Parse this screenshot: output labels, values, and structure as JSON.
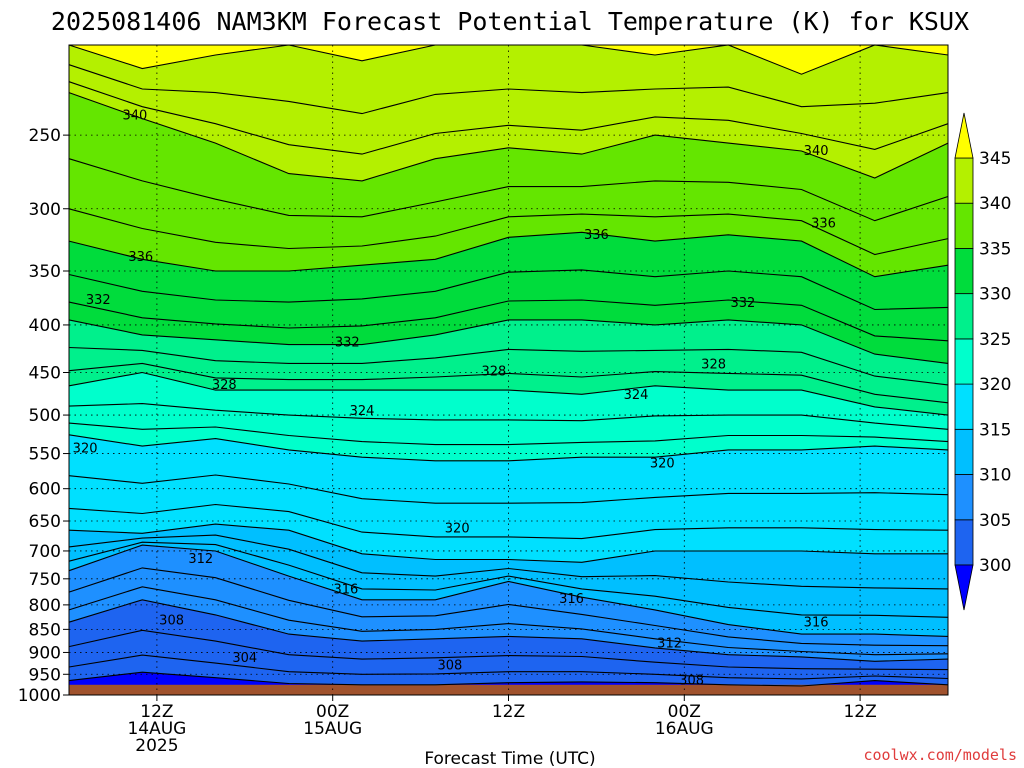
{
  "title": "2025081406 NAM3KM Forecast Potential Temperature (K) for KSUX",
  "credit": "coolwx.com/models",
  "colors": {
    "ground": "#a0522d",
    "bands": [
      "#0000ff",
      "#1e64f0",
      "#1e90ff",
      "#00bfff",
      "#00e0ff",
      "#00ffcc",
      "#00f08c",
      "#00dc3c",
      "#64e600",
      "#b4f000",
      "#ffff00"
    ]
  },
  "chart_data": {
    "type": "contour",
    "title": "2025081406 NAM3KM Forecast Potential Temperature (K) for KSUX",
    "xlabel": "Forecast Time (UTC)",
    "ylabel": "",
    "x_ticks": [
      {
        "hour": 6,
        "lines": [
          "12Z",
          "14AUG",
          "2025"
        ]
      },
      {
        "hour": 18,
        "lines": [
          "00Z",
          "15AUG"
        ]
      },
      {
        "hour": 30,
        "lines": [
          "12Z"
        ]
      },
      {
        "hour": 42,
        "lines": [
          "00Z",
          "16AUG"
        ]
      },
      {
        "hour": 54,
        "lines": [
          "12Z"
        ]
      }
    ],
    "x_range_hours": [
      0,
      60
    ],
    "y_axis": {
      "unit": "hPa",
      "reversed": true,
      "scale": "log",
      "range": [
        1000,
        200
      ],
      "ticks": [
        250,
        300,
        350,
        400,
        450,
        500,
        550,
        600,
        650,
        700,
        750,
        800,
        850,
        900,
        950,
        1000
      ]
    },
    "colorbar": {
      "levels": [
        300,
        305,
        310,
        315,
        320,
        325,
        330,
        335,
        340,
        345
      ],
      "extend": "both"
    },
    "contour_interval_K": 2,
    "contour_labels": [
      {
        "text": "340",
        "hour": 4.5,
        "p": 238
      },
      {
        "text": "340",
        "hour": 51,
        "p": 260
      },
      {
        "text": "336",
        "hour": 4.9,
        "p": 338
      },
      {
        "text": "336",
        "hour": 36,
        "p": 320
      },
      {
        "text": "336",
        "hour": 51.5,
        "p": 311
      },
      {
        "text": "332",
        "hour": 2,
        "p": 376
      },
      {
        "text": "332",
        "hour": 19,
        "p": 418
      },
      {
        "text": "332",
        "hour": 46,
        "p": 379
      },
      {
        "text": "328",
        "hour": 10.6,
        "p": 464
      },
      {
        "text": "328",
        "hour": 29,
        "p": 449
      },
      {
        "text": "328",
        "hour": 44,
        "p": 441
      },
      {
        "text": "324",
        "hour": 20,
        "p": 495
      },
      {
        "text": "324",
        "hour": 38.7,
        "p": 476
      },
      {
        "text": "320",
        "hour": 1.1,
        "p": 543
      },
      {
        "text": "320",
        "hour": 26.5,
        "p": 662
      },
      {
        "text": "320",
        "hour": 40.5,
        "p": 564
      },
      {
        "text": "316",
        "hour": 18.9,
        "p": 770
      },
      {
        "text": "316",
        "hour": 34.3,
        "p": 788
      },
      {
        "text": "316",
        "hour": 51,
        "p": 836
      },
      {
        "text": "312",
        "hour": 9,
        "p": 714
      },
      {
        "text": "312",
        "hour": 41,
        "p": 880
      },
      {
        "text": "308",
        "hour": 7,
        "p": 832
      },
      {
        "text": "308",
        "hour": 26,
        "p": 930
      },
      {
        "text": "308",
        "hour": 42.5,
        "p": 965
      },
      {
        "text": "304",
        "hour": 12,
        "p": 912
      }
    ],
    "band_boundaries": [
      {
        "level": 345,
        "p": [
          200,
          212,
          205,
          200,
          208,
          200,
          200,
          200,
          205,
          200,
          215,
          200,
          205
        ]
      },
      {
        "level": 340,
        "p": [
          225,
          240,
          255,
          275,
          280,
          265,
          258,
          262,
          250,
          255,
          260,
          278,
          255
        ]
      },
      {
        "level": 335,
        "p": [
          325,
          340,
          350,
          350,
          345,
          340,
          322,
          318,
          325,
          320,
          325,
          355,
          345
        ]
      },
      {
        "level": 330,
        "p": [
          395,
          410,
          415,
          420,
          420,
          410,
          395,
          395,
          400,
          395,
          400,
          430,
          440
        ]
      },
      {
        "level": 325,
        "p": [
          465,
          450,
          470,
          470,
          470,
          470,
          470,
          475,
          465,
          470,
          470,
          490,
          500
        ]
      },
      {
        "level": 320,
        "p": [
          525,
          540,
          530,
          545,
          555,
          560,
          560,
          555,
          555,
          545,
          545,
          540,
          545
        ]
      },
      {
        "level": 315,
        "p": [
          665,
          670,
          655,
          665,
          705,
          715,
          715,
          720,
          700,
          700,
          700,
          705,
          705
        ]
      },
      {
        "level": 310,
        "p": [
          735,
          690,
          700,
          745,
          790,
          790,
          755,
          785,
          810,
          840,
          860,
          860,
          865
        ]
      },
      {
        "level": 305,
        "p": [
          835,
          790,
          820,
          860,
          875,
          870,
          865,
          870,
          890,
          905,
          910,
          920,
          915
        ]
      },
      {
        "level": 300,
        "p": [
          965,
          945,
          958,
          972,
          975,
          975,
          970,
          968,
          970,
          975,
          978,
          965,
          975
        ]
      }
    ]
  }
}
